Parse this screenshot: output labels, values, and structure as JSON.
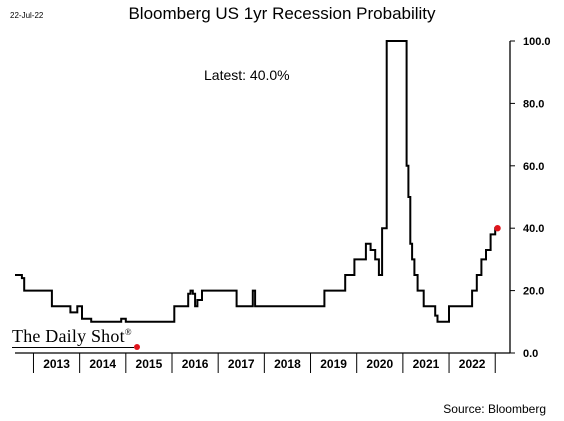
{
  "header": {
    "date": "22-Jul-22",
    "title": "Bloomberg US 1yr Recession Probability"
  },
  "annotation": {
    "latest": "Latest:  40.0%"
  },
  "footer": {
    "source": "Source: Bloomberg"
  },
  "brand": {
    "name": "The Daily Shot",
    "registered": "®"
  },
  "colors": {
    "line": "#000000",
    "latest_marker": "#e0141c",
    "background": "#ffffff"
  },
  "chart_data": {
    "type": "line",
    "title": "Bloomberg US 1yr Recession Probability",
    "xlabel": "",
    "ylabel": "",
    "y_axis_side": "right",
    "ylim": [
      0,
      100
    ],
    "xlim": [
      2012.1,
      2022.82
    ],
    "y_ticks": [
      0,
      20,
      40,
      60,
      80,
      100
    ],
    "y_tick_labels": [
      "0.0",
      "20.0",
      "40.0",
      "60.0",
      "80.0",
      "100.0"
    ],
    "x_tick_labels": [
      "2013",
      "2014",
      "2015",
      "2016",
      "2017",
      "2018",
      "2019",
      "2020",
      "2021",
      "2022"
    ],
    "x_tick_centers": [
      2013.0,
      2014.0,
      2015.0,
      2016.0,
      2017.0,
      2018.0,
      2019.0,
      2020.0,
      2021.0,
      2022.0
    ],
    "grid": false,
    "legend": "none",
    "step": true,
    "series": [
      {
        "x": [
          2012.1,
          2012.25,
          2012.3,
          2012.75,
          2012.9,
          2013.3,
          2013.45,
          2013.55,
          2013.65,
          2013.75,
          2014.4,
          2014.5,
          2014.7,
          2015.55,
          2015.85,
          2015.9,
          2015.95,
          2016.0,
          2016.05,
          2016.15,
          2016.85,
          2016.9,
          2017.25,
          2017.3,
          2017.4,
          2018.7,
          2018.8,
          2019.25,
          2019.45,
          2019.7,
          2019.8,
          2019.9,
          2019.98,
          2020.05,
          2020.15,
          2020.55,
          2020.58,
          2020.62,
          2020.66,
          2020.7,
          2020.75,
          2020.82,
          2020.95,
          2021.2,
          2021.25,
          2021.5,
          2022.0,
          2022.1,
          2022.2,
          2022.3,
          2022.4,
          2022.5,
          2022.55
        ],
        "values": [
          25,
          24,
          20,
          20,
          15,
          13,
          15,
          11,
          11,
          10,
          11,
          10,
          10,
          15,
          19,
          20,
          19,
          15,
          17,
          20,
          20,
          15,
          20,
          15,
          15,
          15,
          20,
          25,
          30,
          35,
          33,
          30,
          25,
          40,
          100,
          100,
          60,
          50,
          35,
          30,
          25,
          20,
          15,
          12,
          10,
          15,
          20,
          25,
          30,
          33,
          38,
          40,
          40
        ]
      }
    ],
    "latest": {
      "x": 2022.55,
      "y": 40.0,
      "label": "Latest:  40.0%"
    }
  }
}
